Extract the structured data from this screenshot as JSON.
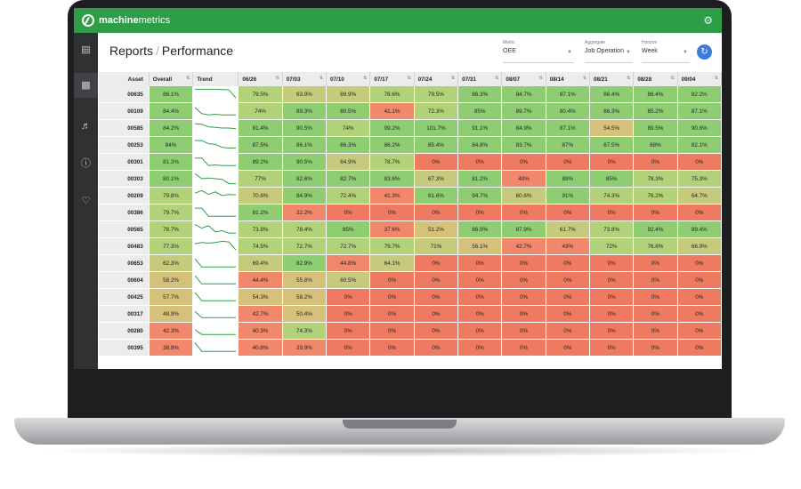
{
  "app": {
    "brand_bold": "machine",
    "brand_rest": "metrics"
  },
  "header": {
    "section": "Reports",
    "page": "Performance"
  },
  "filters": [
    {
      "label": "Metric",
      "value": "OEE"
    },
    {
      "label": "Aggregate",
      "value": "Job Operation"
    },
    {
      "label": "Horizon",
      "value": "Week"
    }
  ],
  "icons": {
    "settings": "gear-icon",
    "refresh": "refresh-icon",
    "sidebar": [
      "dashboard-icon",
      "bar-chart-icon",
      "bell-icon",
      "alert-icon",
      "heartbeat-icon"
    ]
  },
  "table": {
    "columns": [
      "Asset",
      "Overall",
      "Trend",
      "06/26",
      "07/03",
      "07/10",
      "07/17",
      "07/24",
      "07/31",
      "08/07",
      "08/14",
      "08/21",
      "08/28",
      "09/04"
    ],
    "rows": [
      {
        "asset": "00635",
        "overall": "86.1%",
        "trend": [
          0.9,
          0.9,
          0.9,
          0.9,
          0.88,
          0.85,
          0.2
        ],
        "weeks": [
          "79.5%",
          "63.9%",
          "69.9%",
          "76.6%",
          "79.5%",
          "86.3%",
          "84.7%",
          "87.1%",
          "86.4%",
          "86.4%",
          "82.2%"
        ]
      },
      {
        "asset": "00109",
        "overall": "84.4%",
        "trend": [
          0.8,
          0.3,
          0.2,
          0.25,
          0.2,
          0.2,
          0.2
        ],
        "weeks": [
          "74%",
          "89.3%",
          "80.5%",
          "41.1%",
          "72.3%",
          "85%",
          "89.7%",
          "80.4%",
          "86.3%",
          "85.2%",
          "87.1%"
        ]
      },
      {
        "asset": "00585",
        "overall": "84.2%",
        "trend": [
          0.85,
          0.8,
          0.6,
          0.55,
          0.5,
          0.5,
          0.45
        ],
        "weeks": [
          "81.4%",
          "90.5%",
          "74%",
          "99.2%",
          "101.7%",
          "91.1%",
          "84.9%",
          "87.1%",
          "54.5%",
          "89.5%",
          "90.6%"
        ]
      },
      {
        "asset": "00253",
        "overall": "84%",
        "trend": [
          0.85,
          0.85,
          0.6,
          0.55,
          0.3,
          0.25,
          0.25
        ],
        "weeks": [
          "87.5%",
          "86.1%",
          "86.3%",
          "86.2%",
          "85.4%",
          "84.8%",
          "83.7%",
          "87%",
          "87.5%",
          "88%",
          "82.1%"
        ]
      },
      {
        "asset": "00301",
        "overall": "81.3%",
        "trend": [
          0.8,
          0.8,
          0.2,
          0.25,
          0.2,
          0.2,
          0.2
        ],
        "weeks": [
          "89.2%",
          "90.5%",
          "64.9%",
          "78.7%",
          "0%",
          "0%",
          "0%",
          "0%",
          "0%",
          "0%",
          "0%"
        ]
      },
      {
        "asset": "00303",
        "overall": "80.1%",
        "trend": [
          0.9,
          0.5,
          0.55,
          0.5,
          0.45,
          0.1,
          0.1
        ],
        "weeks": [
          "77%",
          "82.6%",
          "82.7%",
          "83.6%",
          "67.3%",
          "81.2%",
          "40%",
          "89%",
          "85%",
          "78.3%",
          "75.3%"
        ]
      },
      {
        "asset": "00209",
        "overall": "79.8%",
        "trend": [
          0.7,
          0.9,
          0.6,
          0.8,
          0.5,
          0.6,
          0.55
        ],
        "weeks": [
          "70.6%",
          "84.9%",
          "72.4%",
          "41.3%",
          "81.6%",
          "94.7%",
          "60.6%",
          "91%",
          "74.3%",
          "76.2%",
          "64.7%"
        ]
      },
      {
        "asset": "00386",
        "overall": "79.7%",
        "trend": [
          0.85,
          0.85,
          0.2,
          0.2,
          0.2,
          0.2,
          0.2
        ],
        "weeks": [
          "81.2%",
          "22.2%",
          "0%",
          "0%",
          "0%",
          "0%",
          "0%",
          "0%",
          "0%",
          "0%",
          "0%"
        ]
      },
      {
        "asset": "00565",
        "overall": "78.7%",
        "trend": [
          0.9,
          0.6,
          0.8,
          0.3,
          0.4,
          0.2,
          0.2
        ],
        "weeks": [
          "73.8%",
          "78.4%",
          "85%",
          "37.6%",
          "51.2%",
          "86.9%",
          "87.9%",
          "61.7%",
          "73.8%",
          "92.4%",
          "89.4%"
        ]
      },
      {
        "asset": "00483",
        "overall": "77.3%",
        "trend": [
          0.7,
          0.8,
          0.75,
          0.8,
          0.9,
          0.85,
          0.2
        ],
        "weeks": [
          "74.5%",
          "72.7%",
          "72.7%",
          "79.7%",
          "71%",
          "56.1%",
          "42.7%",
          "43%",
          "72%",
          "76.8%",
          "66.9%"
        ]
      },
      {
        "asset": "00653",
        "overall": "62.3%",
        "trend": [
          0.85,
          0.2,
          0.2,
          0.2,
          0.2,
          0.2,
          0.2
        ],
        "weeks": [
          "69.4%",
          "82.9%",
          "44.8%",
          "64.1%",
          "0%",
          "0%",
          "0%",
          "0%",
          "0%",
          "0%",
          "0%"
        ]
      },
      {
        "asset": "00604",
        "overall": "58.2%",
        "trend": [
          0.85,
          0.2,
          0.2,
          0.2,
          0.2,
          0.2,
          0.2
        ],
        "weeks": [
          "44.4%",
          "55.8%",
          "60.5%",
          "0%",
          "0%",
          "0%",
          "0%",
          "0%",
          "0%",
          "0%",
          "0%"
        ]
      },
      {
        "asset": "00425",
        "overall": "57.7%",
        "trend": [
          0.85,
          0.2,
          0.2,
          0.2,
          0.2,
          0.2,
          0.2
        ],
        "weeks": [
          "54.3%",
          "58.2%",
          "0%",
          "0%",
          "0%",
          "0%",
          "0%",
          "0%",
          "0%",
          "0%",
          "0%"
        ]
      },
      {
        "asset": "00317",
        "overall": "48.9%",
        "trend": [
          0.7,
          0.2,
          0.2,
          0.2,
          0.2,
          0.2,
          0.2
        ],
        "weeks": [
          "42.7%",
          "50.4%",
          "0%",
          "0%",
          "0%",
          "0%",
          "0%",
          "0%",
          "0%",
          "0%",
          "0%"
        ]
      },
      {
        "asset": "00280",
        "overall": "42.3%",
        "trend": [
          0.6,
          0.2,
          0.2,
          0.2,
          0.2,
          0.2,
          0.2
        ],
        "weeks": [
          "40.3%",
          "74.3%",
          "0%",
          "0%",
          "0%",
          "0%",
          "0%",
          "0%",
          "0%",
          "0%",
          "0%"
        ]
      },
      {
        "asset": "00395",
        "overall": "38.9%",
        "trend": [
          0.9,
          0.2,
          0.2,
          0.2,
          0.2,
          0.2,
          0.2
        ],
        "weeks": [
          "40.8%",
          "29.9%",
          "0%",
          "0%",
          "0%",
          "0%",
          "0%",
          "0%",
          "0%",
          "0%",
          "0%"
        ]
      }
    ]
  },
  "colors": {
    "brand_green": "#2e9d47",
    "trend_line": "#2e9d47",
    "high": "#8fcd73",
    "mid": "#d6c17a",
    "low": "#f1876b",
    "zero": "#ef7a62"
  }
}
